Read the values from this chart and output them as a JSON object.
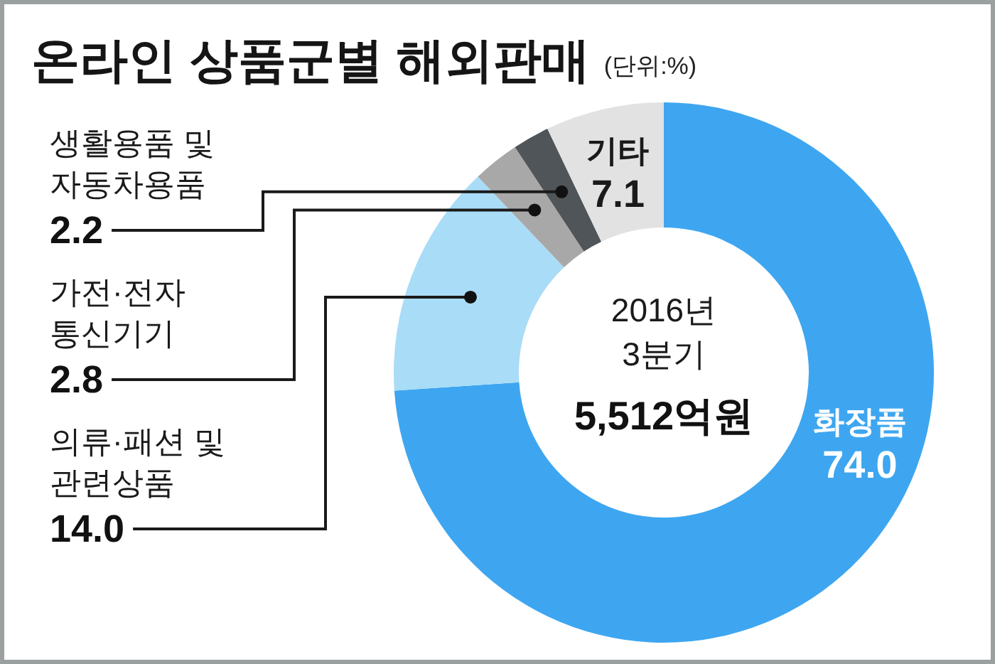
{
  "chart_data": {
    "type": "donut",
    "title": "온라인 상품군별 해외판매",
    "subtitle": "(단위:%)",
    "categories": [
      "화장품",
      "의류·패션 및 관련상품",
      "가전·전자 통신기기",
      "생활용품 및 자동차용품",
      "기타"
    ],
    "values": [
      74.0,
      14.0,
      2.8,
      2.2,
      7.1
    ],
    "colors": [
      "#3ea6f0",
      "#a9dcf7",
      "#a8a8a8",
      "#4f5558",
      "#e2e2e2"
    ],
    "value_labels": [
      "74.0",
      "14.0",
      "2.8",
      "2.2",
      "7.1"
    ],
    "annotations": [
      "2016년 3분기",
      "5,512억원"
    ]
  }
}
